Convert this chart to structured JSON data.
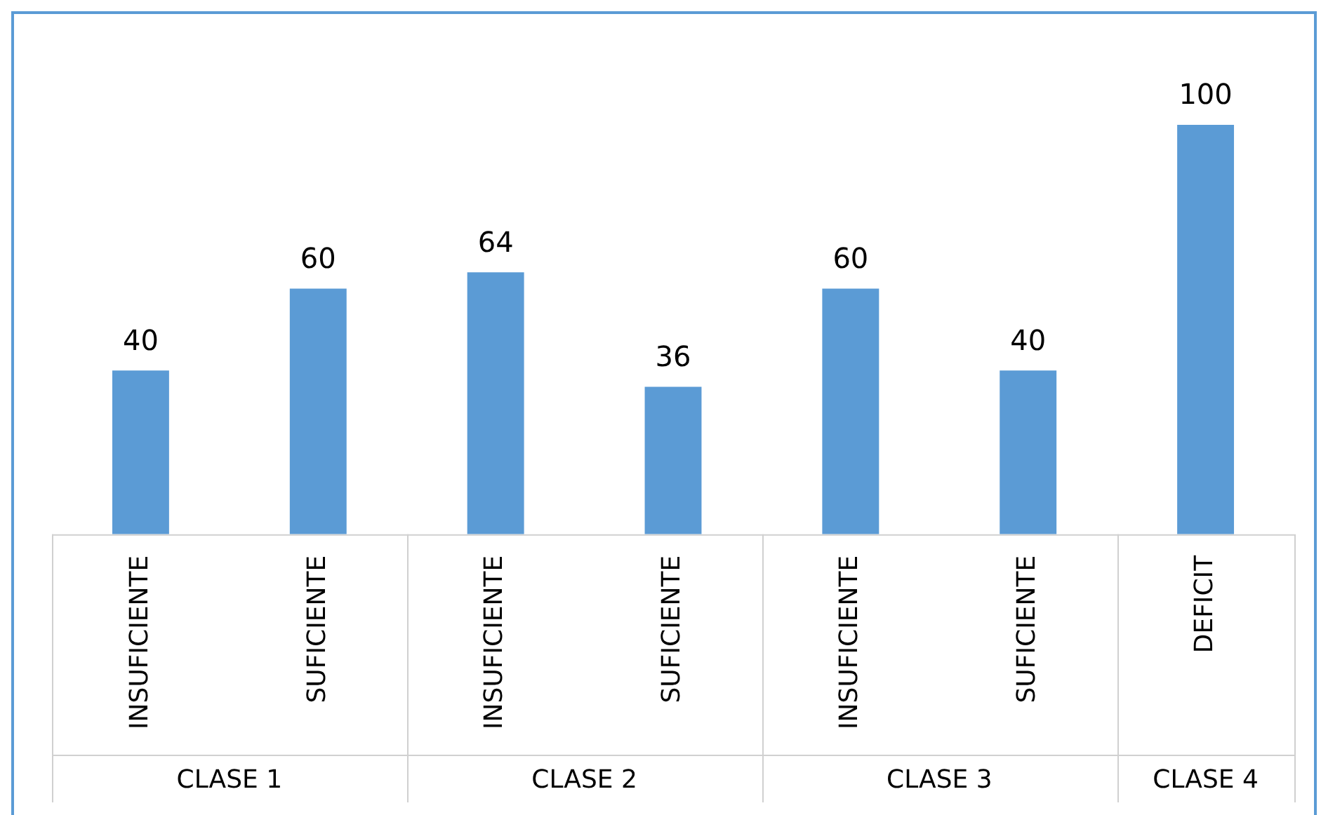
{
  "chart_data": {
    "type": "bar",
    "categories": [
      "INSUFICIENTE",
      "SUFICIENTE",
      "INSUFICIENTE",
      "SUFICIENTE",
      "INSUFICIENTE",
      "SUFICIENTE",
      "DEFICIT"
    ],
    "values": [
      40,
      60,
      64,
      36,
      60,
      40,
      100
    ],
    "color": "#5b9bd5",
    "data_labels": true,
    "grid": false,
    "legend": false,
    "annotations": [
      "CLASE 1",
      "CLASE 2",
      "CLASE 3",
      "CLASE 4"
    ]
  }
}
